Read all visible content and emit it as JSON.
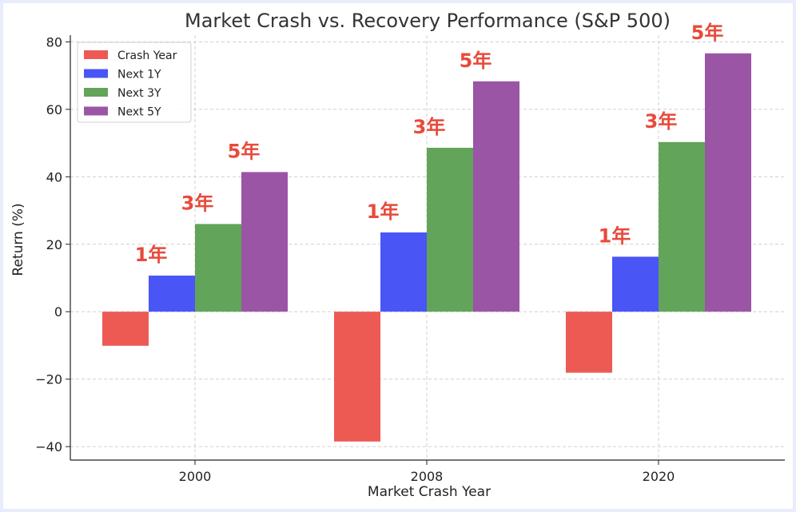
{
  "chart_data": {
    "type": "bar",
    "title": "Market Crash vs. Recovery Performance (S&P 500)",
    "xlabel": "Market Crash Year",
    "ylabel": "Return (%)",
    "categories": [
      "2000",
      "2008",
      "2020"
    ],
    "series": [
      {
        "name": "Crash Year",
        "color": "#ed5a54",
        "values": [
          -10.1,
          -38.5,
          -18.1
        ]
      },
      {
        "name": "Next 1Y",
        "color": "#4a55f5",
        "values": [
          10.7,
          23.5,
          16.3
        ]
      },
      {
        "name": "Next 3Y",
        "color": "#62a459",
        "values": [
          26.0,
          48.6,
          50.3
        ]
      },
      {
        "name": "Next 5Y",
        "color": "#9a55a5",
        "values": [
          41.4,
          68.3,
          76.6
        ]
      }
    ],
    "ylim": [
      -44,
      82
    ],
    "yticks": [
      -40,
      -20,
      0,
      20,
      40,
      60,
      80
    ],
    "ytick_labels": [
      "−40",
      "−20",
      "0",
      "20",
      "40",
      "60",
      "80"
    ],
    "grid": true,
    "legend_position": "top-left",
    "annotations": [
      {
        "text": "1年",
        "category": "2000",
        "series": "Next 1Y"
      },
      {
        "text": "3年",
        "category": "2000",
        "series": "Next 3Y"
      },
      {
        "text": "5年",
        "category": "2000",
        "series": "Next 5Y"
      },
      {
        "text": "1年",
        "category": "2008",
        "series": "Next 1Y"
      },
      {
        "text": "3年",
        "category": "2008",
        "series": "Next 3Y"
      },
      {
        "text": "5年",
        "category": "2008",
        "series": "Next 5Y"
      },
      {
        "text": "1年",
        "category": "2020",
        "series": "Next 1Y"
      },
      {
        "text": "3年",
        "category": "2020",
        "series": "Next 3Y"
      },
      {
        "text": "5年",
        "category": "2020",
        "series": "Next 5Y"
      }
    ],
    "annotation_color": "#e84a3c"
  }
}
